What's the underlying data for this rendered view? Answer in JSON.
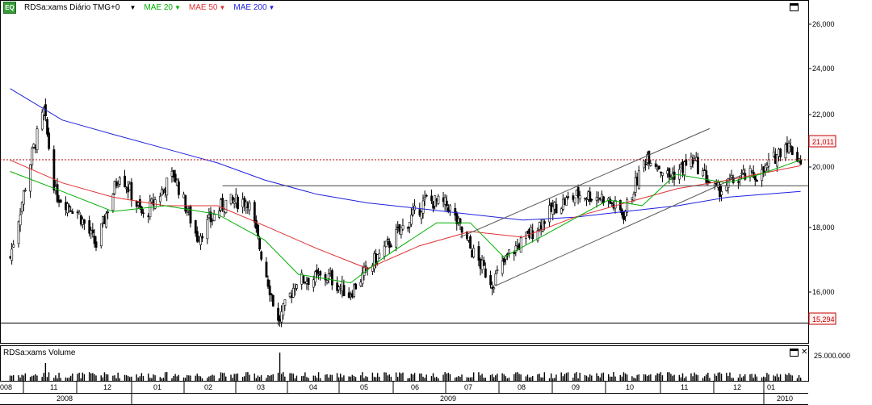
{
  "legend": {
    "symbol_icon": "eq-icon",
    "symbol_icon_text": "EQ",
    "title": "RDSa:xams Diário TMG+0",
    "studies": [
      {
        "label": "MAE 20",
        "color": "#00b000"
      },
      {
        "label": "MAE 50",
        "color": "#e03030"
      },
      {
        "label": "MAE 200",
        "color": "#2020e0"
      }
    ]
  },
  "volume_panel": {
    "title": "RDSa:xams Volume",
    "y_label": "25.000.000"
  },
  "price_axis": {
    "ticks": [
      "26,000",
      "24,000",
      "22,000",
      "20,000",
      "18,000",
      "16,000"
    ],
    "last_price_label": "21,011",
    "low_label": "15,294"
  },
  "time_axis": {
    "months": [
      "008",
      "11",
      "12",
      "01",
      "02",
      "03",
      "04",
      "05",
      "06",
      "07",
      "08",
      "09",
      "10",
      "11",
      "12",
      "01"
    ],
    "years": [
      "2008",
      "2009",
      "2010"
    ]
  },
  "chart_data": {
    "type": "candlestick",
    "title": "RDSa:xams Diário TMG+0",
    "ylim": [
      14.6,
      26.6
    ],
    "series": [
      {
        "name": "MAE 20",
        "color": "#00b000"
      },
      {
        "name": "MAE 50",
        "color": "#e03030"
      },
      {
        "name": "MAE 200",
        "color": "#2020e0"
      }
    ],
    "price_path": [
      {
        "x": "2008-10-01",
        "y": 17.6
      },
      {
        "x": "2008-10-14",
        "y": 21.2
      },
      {
        "x": "2008-10-21",
        "y": 22.7
      },
      {
        "x": "2008-10-28",
        "y": 19.8
      },
      {
        "x": "2008-11-10",
        "y": 19.2
      },
      {
        "x": "2008-11-21",
        "y": 18.0
      },
      {
        "x": "2008-12-05",
        "y": 20.6
      },
      {
        "x": "2008-12-19",
        "y": 19.0
      },
      {
        "x": "2009-01-06",
        "y": 20.5
      },
      {
        "x": "2009-01-20",
        "y": 18.3
      },
      {
        "x": "2009-02-05",
        "y": 19.5
      },
      {
        "x": "2009-02-19",
        "y": 19.6
      },
      {
        "x": "2009-03-02",
        "y": 17.0
      },
      {
        "x": "2009-03-09",
        "y": 15.3
      },
      {
        "x": "2009-03-20",
        "y": 16.8
      },
      {
        "x": "2009-04-08",
        "y": 16.9
      },
      {
        "x": "2009-04-20",
        "y": 16.3
      },
      {
        "x": "2009-05-04",
        "y": 17.4
      },
      {
        "x": "2009-05-20",
        "y": 18.5
      },
      {
        "x": "2009-06-05",
        "y": 19.6
      },
      {
        "x": "2009-06-18",
        "y": 19.4
      },
      {
        "x": "2009-07-01",
        "y": 17.9
      },
      {
        "x": "2009-07-14",
        "y": 16.7
      },
      {
        "x": "2009-07-24",
        "y": 17.7
      },
      {
        "x": "2009-08-07",
        "y": 18.5
      },
      {
        "x": "2009-08-21",
        "y": 19.4
      },
      {
        "x": "2009-09-04",
        "y": 19.8
      },
      {
        "x": "2009-09-18",
        "y": 19.7
      },
      {
        "x": "2009-09-30",
        "y": 19.1
      },
      {
        "x": "2009-10-14",
        "y": 21.2
      },
      {
        "x": "2009-10-27",
        "y": 20.4
      },
      {
        "x": "2009-11-10",
        "y": 21.0
      },
      {
        "x": "2009-11-24",
        "y": 19.9
      },
      {
        "x": "2009-12-08",
        "y": 20.4
      },
      {
        "x": "2009-12-21",
        "y": 20.5
      },
      {
        "x": "2010-01-04",
        "y": 21.6
      },
      {
        "x": "2010-01-13",
        "y": 21.0
      }
    ],
    "mae20": [
      {
        "x": "2008-10-01",
        "y": 20.6
      },
      {
        "x": "2008-11-01",
        "y": 19.9
      },
      {
        "x": "2008-12-01",
        "y": 19.2
      },
      {
        "x": "2009-01-01",
        "y": 19.4
      },
      {
        "x": "2009-02-01",
        "y": 19.1
      },
      {
        "x": "2009-03-01",
        "y": 18.2
      },
      {
        "x": "2009-03-21",
        "y": 17.0
      },
      {
        "x": "2009-04-21",
        "y": 16.7
      },
      {
        "x": "2009-05-11",
        "y": 17.6
      },
      {
        "x": "2009-06-11",
        "y": 18.8
      },
      {
        "x": "2009-07-01",
        "y": 18.8
      },
      {
        "x": "2009-07-21",
        "y": 17.6
      },
      {
        "x": "2009-08-21",
        "y": 18.6
      },
      {
        "x": "2009-09-21",
        "y": 19.6
      },
      {
        "x": "2009-10-11",
        "y": 19.4
      },
      {
        "x": "2009-10-31",
        "y": 20.5
      },
      {
        "x": "2009-11-30",
        "y": 20.2
      },
      {
        "x": "2009-12-20",
        "y": 20.5
      },
      {
        "x": "2010-01-13",
        "y": 21.0
      }
    ],
    "mae50": [
      {
        "x": "2008-10-01",
        "y": 21.0
      },
      {
        "x": "2008-11-01",
        "y": 20.2
      },
      {
        "x": "2008-12-01",
        "y": 19.7
      },
      {
        "x": "2009-01-01",
        "y": 19.4
      },
      {
        "x": "2009-02-01",
        "y": 19.4
      },
      {
        "x": "2009-03-01",
        "y": 18.7
      },
      {
        "x": "2009-04-01",
        "y": 17.9
      },
      {
        "x": "2009-05-01",
        "y": 17.2
      },
      {
        "x": "2009-06-01",
        "y": 18.0
      },
      {
        "x": "2009-07-01",
        "y": 18.5
      },
      {
        "x": "2009-08-01",
        "y": 18.3
      },
      {
        "x": "2009-09-01",
        "y": 19.0
      },
      {
        "x": "2009-10-01",
        "y": 19.5
      },
      {
        "x": "2009-11-01",
        "y": 20.0
      },
      {
        "x": "2009-12-01",
        "y": 20.3
      },
      {
        "x": "2010-01-13",
        "y": 20.8
      }
    ],
    "mae200": [
      {
        "x": "2008-10-01",
        "y": 23.5
      },
      {
        "x": "2008-11-01",
        "y": 22.4
      },
      {
        "x": "2008-12-01",
        "y": 21.9
      },
      {
        "x": "2009-01-01",
        "y": 21.4
      },
      {
        "x": "2009-02-01",
        "y": 20.9
      },
      {
        "x": "2009-03-01",
        "y": 20.3
      },
      {
        "x": "2009-04-01",
        "y": 19.8
      },
      {
        "x": "2009-05-01",
        "y": 19.5
      },
      {
        "x": "2009-06-01",
        "y": 19.3
      },
      {
        "x": "2009-07-01",
        "y": 19.1
      },
      {
        "x": "2009-08-01",
        "y": 18.9
      },
      {
        "x": "2009-09-01",
        "y": 19.0
      },
      {
        "x": "2009-10-01",
        "y": 19.2
      },
      {
        "x": "2009-11-01",
        "y": 19.4
      },
      {
        "x": "2009-12-01",
        "y": 19.7
      },
      {
        "x": "2010-01-13",
        "y": 19.9
      }
    ],
    "trend_lines": [
      {
        "x1": "2009-06-25",
        "y1": 18.3,
        "x2": "2009-11-20",
        "y2": 22.1
      },
      {
        "x1": "2009-07-16",
        "y1": 16.6,
        "x2": "2009-12-10",
        "y2": 20.5
      }
    ],
    "horizontal_lines": [
      {
        "y": 21.011,
        "color": "#b00000",
        "style": "dotted"
      },
      {
        "y": 20.1,
        "color": "#444444",
        "style": "solid",
        "from": "2009-02-04"
      },
      {
        "y": 15.294,
        "color": "#000000",
        "style": "solid"
      }
    ]
  }
}
